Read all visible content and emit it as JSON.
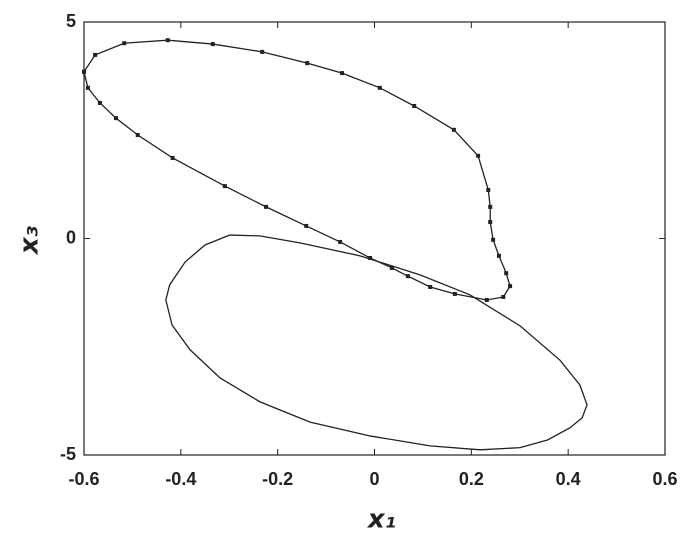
{
  "chart_data": {
    "type": "line",
    "xlabel": "x₁",
    "ylabel": "x₃",
    "xlim": [
      -0.6,
      0.6
    ],
    "ylim": [
      -5,
      5
    ],
    "xticks": [
      -0.6,
      -0.4,
      -0.2,
      0,
      0.2,
      0.4,
      0.6
    ],
    "yticks": [
      -5,
      0,
      5
    ],
    "series": [
      {
        "color": "#222222",
        "markers": true,
        "x": [
          -0.6,
          -0.592,
          -0.567,
          -0.534,
          -0.489,
          -0.417,
          -0.309,
          -0.224,
          -0.141,
          -0.071,
          -0.009,
          0.036,
          0.069,
          0.115,
          0.166,
          0.232,
          0.266,
          0.28,
          0.272,
          0.257,
          0.245,
          0.239,
          0.239,
          0.235,
          0.214,
          0.164,
          0.082,
          0.011,
          -0.067,
          -0.139,
          -0.232,
          -0.334,
          -0.427,
          -0.517,
          -0.577,
          -0.6
        ],
        "values": [
          3.85,
          3.48,
          3.13,
          2.78,
          2.39,
          1.86,
          1.21,
          0.73,
          0.29,
          -0.08,
          -0.45,
          -0.68,
          -0.87,
          -1.12,
          -1.28,
          -1.42,
          -1.35,
          -1.1,
          -0.8,
          -0.4,
          -0.03,
          0.38,
          0.73,
          1.12,
          1.91,
          2.51,
          3.06,
          3.48,
          3.82,
          4.05,
          4.31,
          4.49,
          4.58,
          4.51,
          4.24,
          3.85
        ]
      },
      {
        "color": "#222222",
        "markers": false,
        "x": [
          -0.299,
          -0.35,
          -0.391,
          -0.423,
          -0.431,
          -0.418,
          -0.381,
          -0.319,
          -0.237,
          -0.133,
          -0.009,
          0.115,
          0.218,
          0.301,
          0.358,
          0.404,
          0.429,
          0.439,
          0.424,
          0.383,
          0.301,
          0.197,
          0.094,
          -0.03,
          -0.154,
          -0.237,
          -0.299
        ],
        "values": [
          0.08,
          -0.15,
          -0.54,
          -1.07,
          -1.42,
          -2.0,
          -2.57,
          -3.22,
          -3.77,
          -4.24,
          -4.56,
          -4.79,
          -4.88,
          -4.83,
          -4.65,
          -4.37,
          -4.14,
          -3.84,
          -3.38,
          -2.81,
          -2.02,
          -1.3,
          -0.84,
          -0.4,
          -0.1,
          0.06,
          0.08
        ]
      }
    ]
  }
}
